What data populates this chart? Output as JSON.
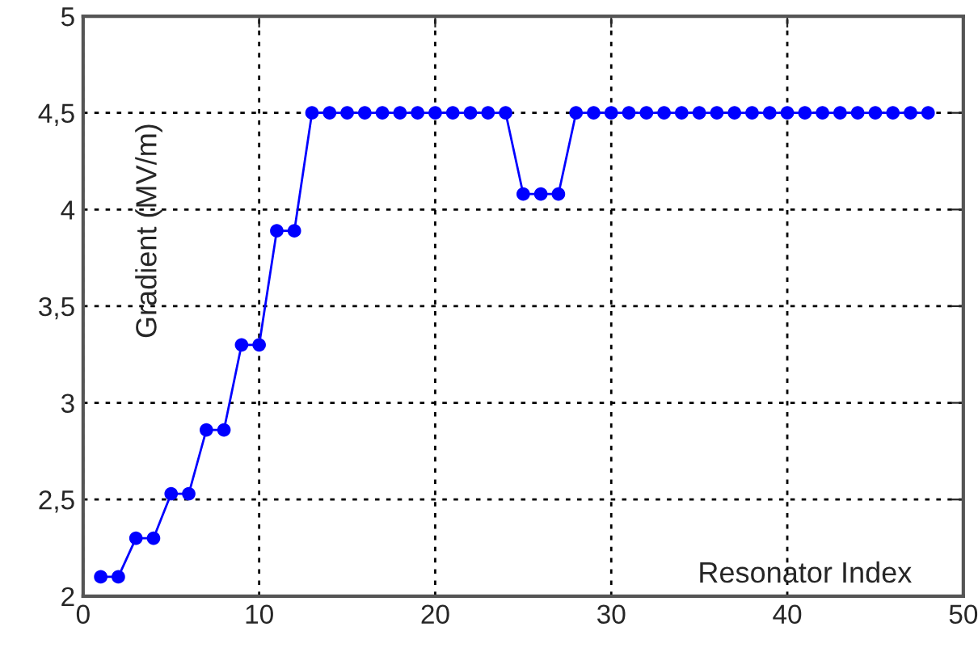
{
  "chart_data": {
    "type": "line",
    "xlabel": "Resonator Index",
    "ylabel": "Gradient (MV/m)",
    "x": [
      1,
      2,
      3,
      4,
      5,
      6,
      7,
      8,
      9,
      10,
      11,
      12,
      13,
      14,
      15,
      16,
      17,
      18,
      19,
      20,
      21,
      22,
      23,
      24,
      25,
      26,
      27,
      28,
      29,
      30,
      31,
      32,
      33,
      34,
      35,
      36,
      37,
      38,
      39,
      40,
      41,
      42,
      43,
      44,
      45,
      46,
      47,
      48
    ],
    "series": [
      {
        "color": "#0000ff",
        "values": [
          2.1,
          2.1,
          2.3,
          2.3,
          2.53,
          2.53,
          2.86,
          2.86,
          3.3,
          3.3,
          3.89,
          3.89,
          4.5,
          4.5,
          4.5,
          4.5,
          4.5,
          4.5,
          4.5,
          4.5,
          4.5,
          4.5,
          4.5,
          4.5,
          4.08,
          4.08,
          4.08,
          4.5,
          4.5,
          4.5,
          4.5,
          4.5,
          4.5,
          4.5,
          4.5,
          4.5,
          4.5,
          4.5,
          4.5,
          4.5,
          4.5,
          4.5,
          4.5,
          4.5,
          4.5,
          4.5,
          4.5,
          4.5
        ]
      }
    ],
    "xlim": [
      0,
      50
    ],
    "ylim": [
      2,
      5
    ],
    "xticks": [
      0,
      10,
      20,
      30,
      40,
      50
    ],
    "yticks": [
      2,
      {
        "value": 2.5,
        "label": "2,5"
      },
      3,
      {
        "value": 3.5,
        "label": "3,5"
      },
      4,
      {
        "value": 4.5,
        "label": "4,5"
      },
      5
    ],
    "grid": true,
    "marker": "circle",
    "line_style": "solid"
  }
}
